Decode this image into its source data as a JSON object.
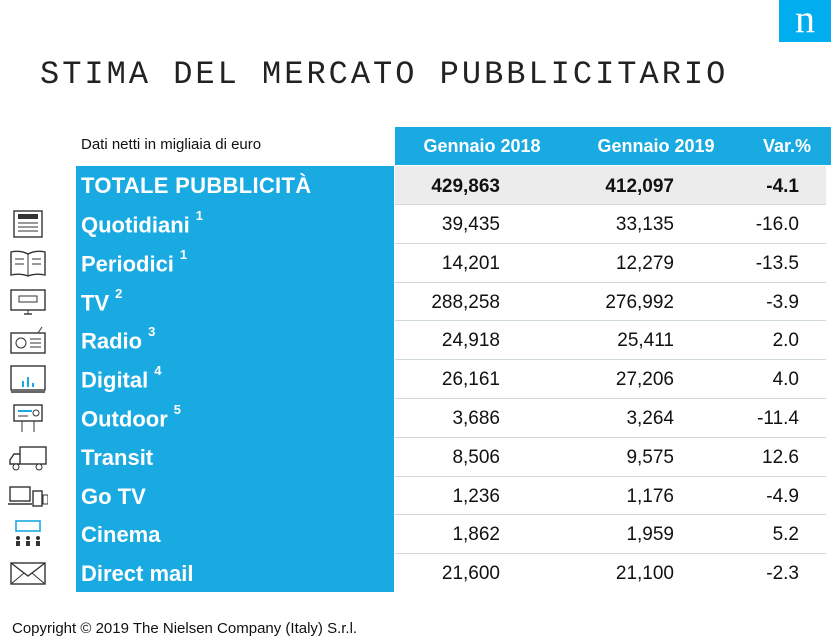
{
  "logo": "n",
  "title": "STIMA DEL MERCATO PUBBLICITARIO",
  "units_note": "Dati netti in migliaia di euro",
  "columns": [
    "Gennaio 2018",
    "Gennaio 2019",
    "Var.%"
  ],
  "total": {
    "label": "TOTALE PUBBLICITÀ",
    "v2018": "429,863",
    "v2019": "412,097",
    "var": "-4.1"
  },
  "rows": [
    {
      "label": "Quotidiani",
      "note": "1",
      "v2018": "39,435",
      "v2019": "33,135",
      "var": "-16.0",
      "icon": "newspaper-icon"
    },
    {
      "label": "Periodici",
      "note": "1",
      "v2018": "14,201",
      "v2019": "12,279",
      "var": "-13.5",
      "icon": "magazine-icon"
    },
    {
      "label": "TV",
      "note": "2",
      "v2018": "288,258",
      "v2019": "276,992",
      "var": "-3.9",
      "icon": "tv-icon"
    },
    {
      "label": "Radio",
      "note": "3",
      "v2018": "24,918",
      "v2019": "25,411",
      "var": "2.0",
      "icon": "radio-icon"
    },
    {
      "label": "Digital",
      "note": "4",
      "v2018": "26,161",
      "v2019": "27,206",
      "var": "4.0",
      "icon": "monitor-chart-icon"
    },
    {
      "label": "Outdoor",
      "note": "5",
      "v2018": "3,686",
      "v2019": "3,264",
      "var": "-11.4",
      "icon": "billboard-icon"
    },
    {
      "label": "Transit",
      "note": "",
      "v2018": "8,506",
      "v2019": "9,575",
      "var": "12.6",
      "icon": "truck-icon"
    },
    {
      "label": "Go TV",
      "note": "",
      "v2018": "1,236",
      "v2019": "1,176",
      "var": "-4.9",
      "icon": "devices-icon"
    },
    {
      "label": "Cinema",
      "note": "",
      "v2018": "1,862",
      "v2019": "1,959",
      "var": "5.2",
      "icon": "cinema-icon"
    },
    {
      "label": "Direct mail",
      "note": "",
      "v2018": "21,600",
      "v2019": "21,100",
      "var": "-2.3",
      "icon": "envelope-icon"
    }
  ],
  "copyright": "Copyright © 2019 The Nielsen Company (Italy) S.r.l.",
  "colors": {
    "accent": "#1aaae2",
    "logo_bg": "#00aeef",
    "total_row_bg": "#ececec"
  }
}
